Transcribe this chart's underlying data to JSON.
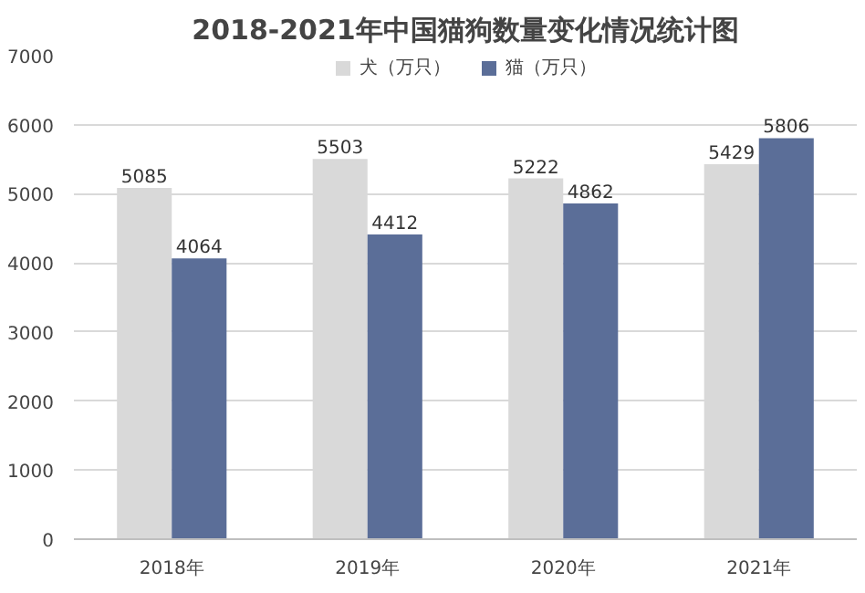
{
  "chart_data": {
    "type": "bar",
    "title": "2018-2021年中国猫狗数量变化情况统计图",
    "categories": [
      "2018年",
      "2019年",
      "2020年",
      "2021年"
    ],
    "series": [
      {
        "name": "犬（万只）",
        "color": "#d9d9d9",
        "values": [
          5085,
          5503,
          5222,
          5429
        ]
      },
      {
        "name": "猫（万只）",
        "color": "#5b6e98",
        "values": [
          4064,
          4412,
          4862,
          5806
        ]
      }
    ],
    "ylim": [
      0,
      7000
    ],
    "yticks": [
      0,
      1000,
      2000,
      3000,
      4000,
      5000,
      6000,
      7000
    ],
    "grid": "y",
    "legend": "top",
    "data_labels": true
  }
}
